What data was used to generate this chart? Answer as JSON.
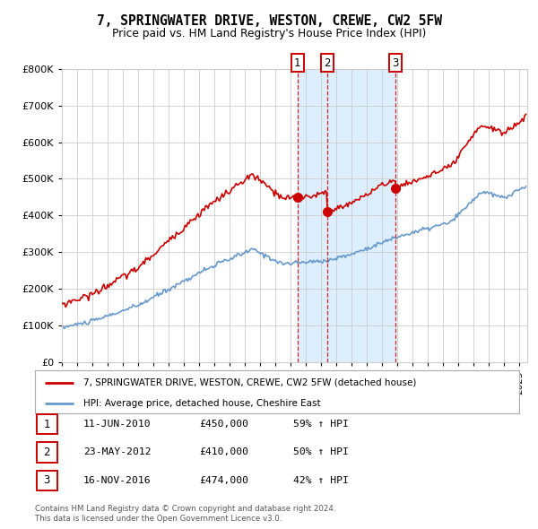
{
  "title": "7, SPRINGWATER DRIVE, WESTON, CREWE, CW2 5FW",
  "subtitle": "Price paid vs. HM Land Registry's House Price Index (HPI)",
  "hpi_label": "HPI: Average price, detached house, Cheshire East",
  "property_label": "7, SPRINGWATER DRIVE, WESTON, CREWE, CW2 5FW (detached house)",
  "transactions": [
    {
      "num": 1,
      "date": "11-JUN-2010",
      "date_dec": 2010.44,
      "price": 450000,
      "pct": "59% ↑ HPI"
    },
    {
      "num": 2,
      "date": "23-MAY-2012",
      "date_dec": 2012.39,
      "price": 410000,
      "pct": "50% ↑ HPI"
    },
    {
      "num": 3,
      "date": "16-NOV-2016",
      "date_dec": 2016.88,
      "price": 474000,
      "pct": "42% ↑ HPI"
    }
  ],
  "footnote1": "Contains HM Land Registry data © Crown copyright and database right 2024.",
  "footnote2": "This data is licensed under the Open Government Licence v3.0.",
  "property_color": "#cc0000",
  "hpi_color": "#6699cc",
  "highlight_color": "#ddeeff",
  "vline_color": "#cc0000",
  "grid_color": "#cccccc",
  "background_color": "#ffffff",
  "ylim": [
    0,
    800000
  ],
  "xlim_start": 1995.0,
  "xlim_end": 2025.5,
  "yticks": [
    0,
    100000,
    200000,
    300000,
    400000,
    500000,
    600000,
    700000,
    800000
  ]
}
